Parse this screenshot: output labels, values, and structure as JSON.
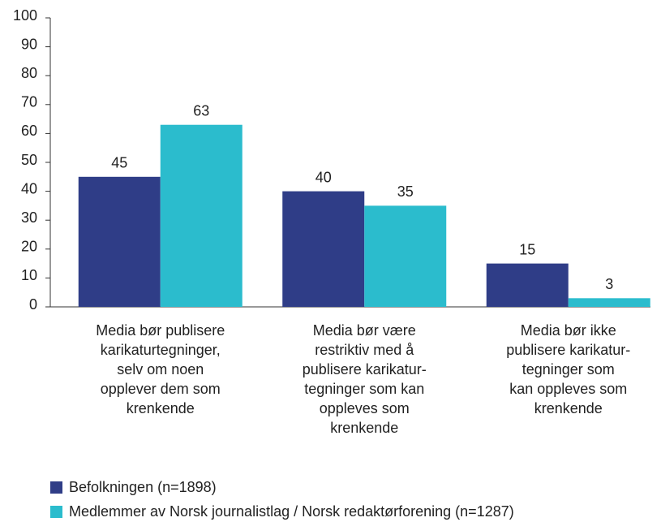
{
  "chart_data": {
    "type": "bar",
    "categories": [
      [
        "Media bør publisere",
        "karikaturtegninger,",
        "selv om noen",
        "opplever dem som",
        "krenkende"
      ],
      [
        "Media bør være",
        "restriktiv med å",
        "publisere karikatur-",
        "tegninger som kan",
        "oppleves som",
        "krenkende"
      ],
      [
        "Media bør ikke",
        "publisere karikatur-",
        "tegninger som",
        "kan oppleves som",
        "krenkende"
      ]
    ],
    "series": [
      {
        "name": "Befolkningen (n=1898)",
        "color": "#2f3d87",
        "values": [
          45,
          40,
          15
        ]
      },
      {
        "name": "Medlemmer av Norsk journalistlag / Norsk redaktørforening (n=1287)",
        "color": "#2bbccd",
        "values": [
          63,
          35,
          3
        ]
      }
    ],
    "ylim": [
      0,
      100
    ],
    "yticks": [
      0,
      10,
      20,
      30,
      40,
      50,
      60,
      70,
      80,
      90,
      100
    ],
    "grid": false,
    "legend": "bottom"
  }
}
